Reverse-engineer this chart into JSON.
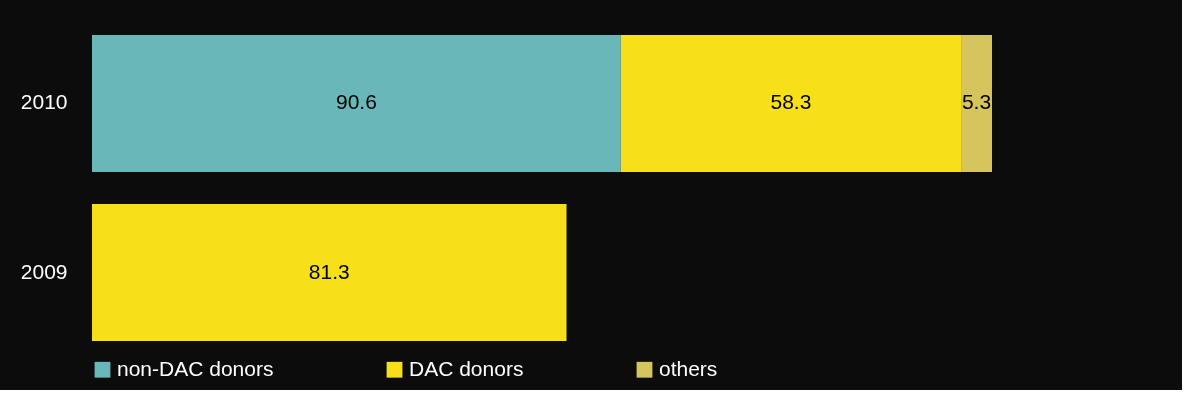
{
  "chart_data": {
    "type": "bar",
    "orientation": "horizontal",
    "stacked": true,
    "data_labels": true,
    "legend": "bottom",
    "categories": [
      "2010",
      "2009"
    ],
    "series": [
      {
        "name": "non-DAC donors",
        "color": "#69b7b8",
        "values": [
          90.6,
          null
        ]
      },
      {
        "name": "DAC donors",
        "color": "#f7e017",
        "values": [
          58.3,
          81.3
        ]
      },
      {
        "name": "others",
        "color": "#d6c45c",
        "values": [
          5.3,
          null
        ]
      }
    ]
  }
}
